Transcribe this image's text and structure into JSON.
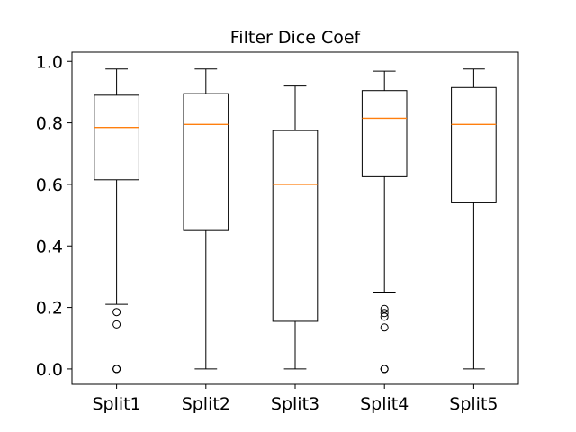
{
  "chart_data": {
    "type": "boxplot",
    "title": "Filter Dice Coef",
    "xlabel": "",
    "ylabel": "",
    "categories": [
      "Split1",
      "Split2",
      "Split3",
      "Split4",
      "Split5"
    ],
    "ylim": [
      -0.05,
      1.03
    ],
    "yticks": [
      0.0,
      0.2,
      0.4,
      0.6,
      0.8,
      1.0
    ],
    "ytick_labels": [
      "0.0",
      "0.2",
      "0.4",
      "0.6",
      "0.8",
      "1.0"
    ],
    "grid": false,
    "colors": {
      "median": "#ff7f0e",
      "box": "#000000"
    },
    "boxes": [
      {
        "label": "Split1",
        "whislo": 0.21,
        "q1": 0.615,
        "med": 0.785,
        "q3": 0.89,
        "whishi": 0.975,
        "fliers": [
          0.185,
          0.145,
          0.0,
          0.0,
          0.0
        ]
      },
      {
        "label": "Split2",
        "whislo": 0.0,
        "q1": 0.45,
        "med": 0.795,
        "q3": 0.895,
        "whishi": 0.975,
        "fliers": []
      },
      {
        "label": "Split3",
        "whislo": 0.0,
        "q1": 0.155,
        "med": 0.6,
        "q3": 0.775,
        "whishi": 0.92,
        "fliers": []
      },
      {
        "label": "Split4",
        "whislo": 0.25,
        "q1": 0.625,
        "med": 0.815,
        "q3": 0.905,
        "whishi": 0.968,
        "fliers": [
          0.195,
          0.182,
          0.17,
          0.135,
          0.0,
          0.0,
          0.0
        ]
      },
      {
        "label": "Split5",
        "whislo": 0.0,
        "q1": 0.54,
        "med": 0.795,
        "q3": 0.915,
        "whishi": 0.975,
        "fliers": []
      }
    ]
  }
}
